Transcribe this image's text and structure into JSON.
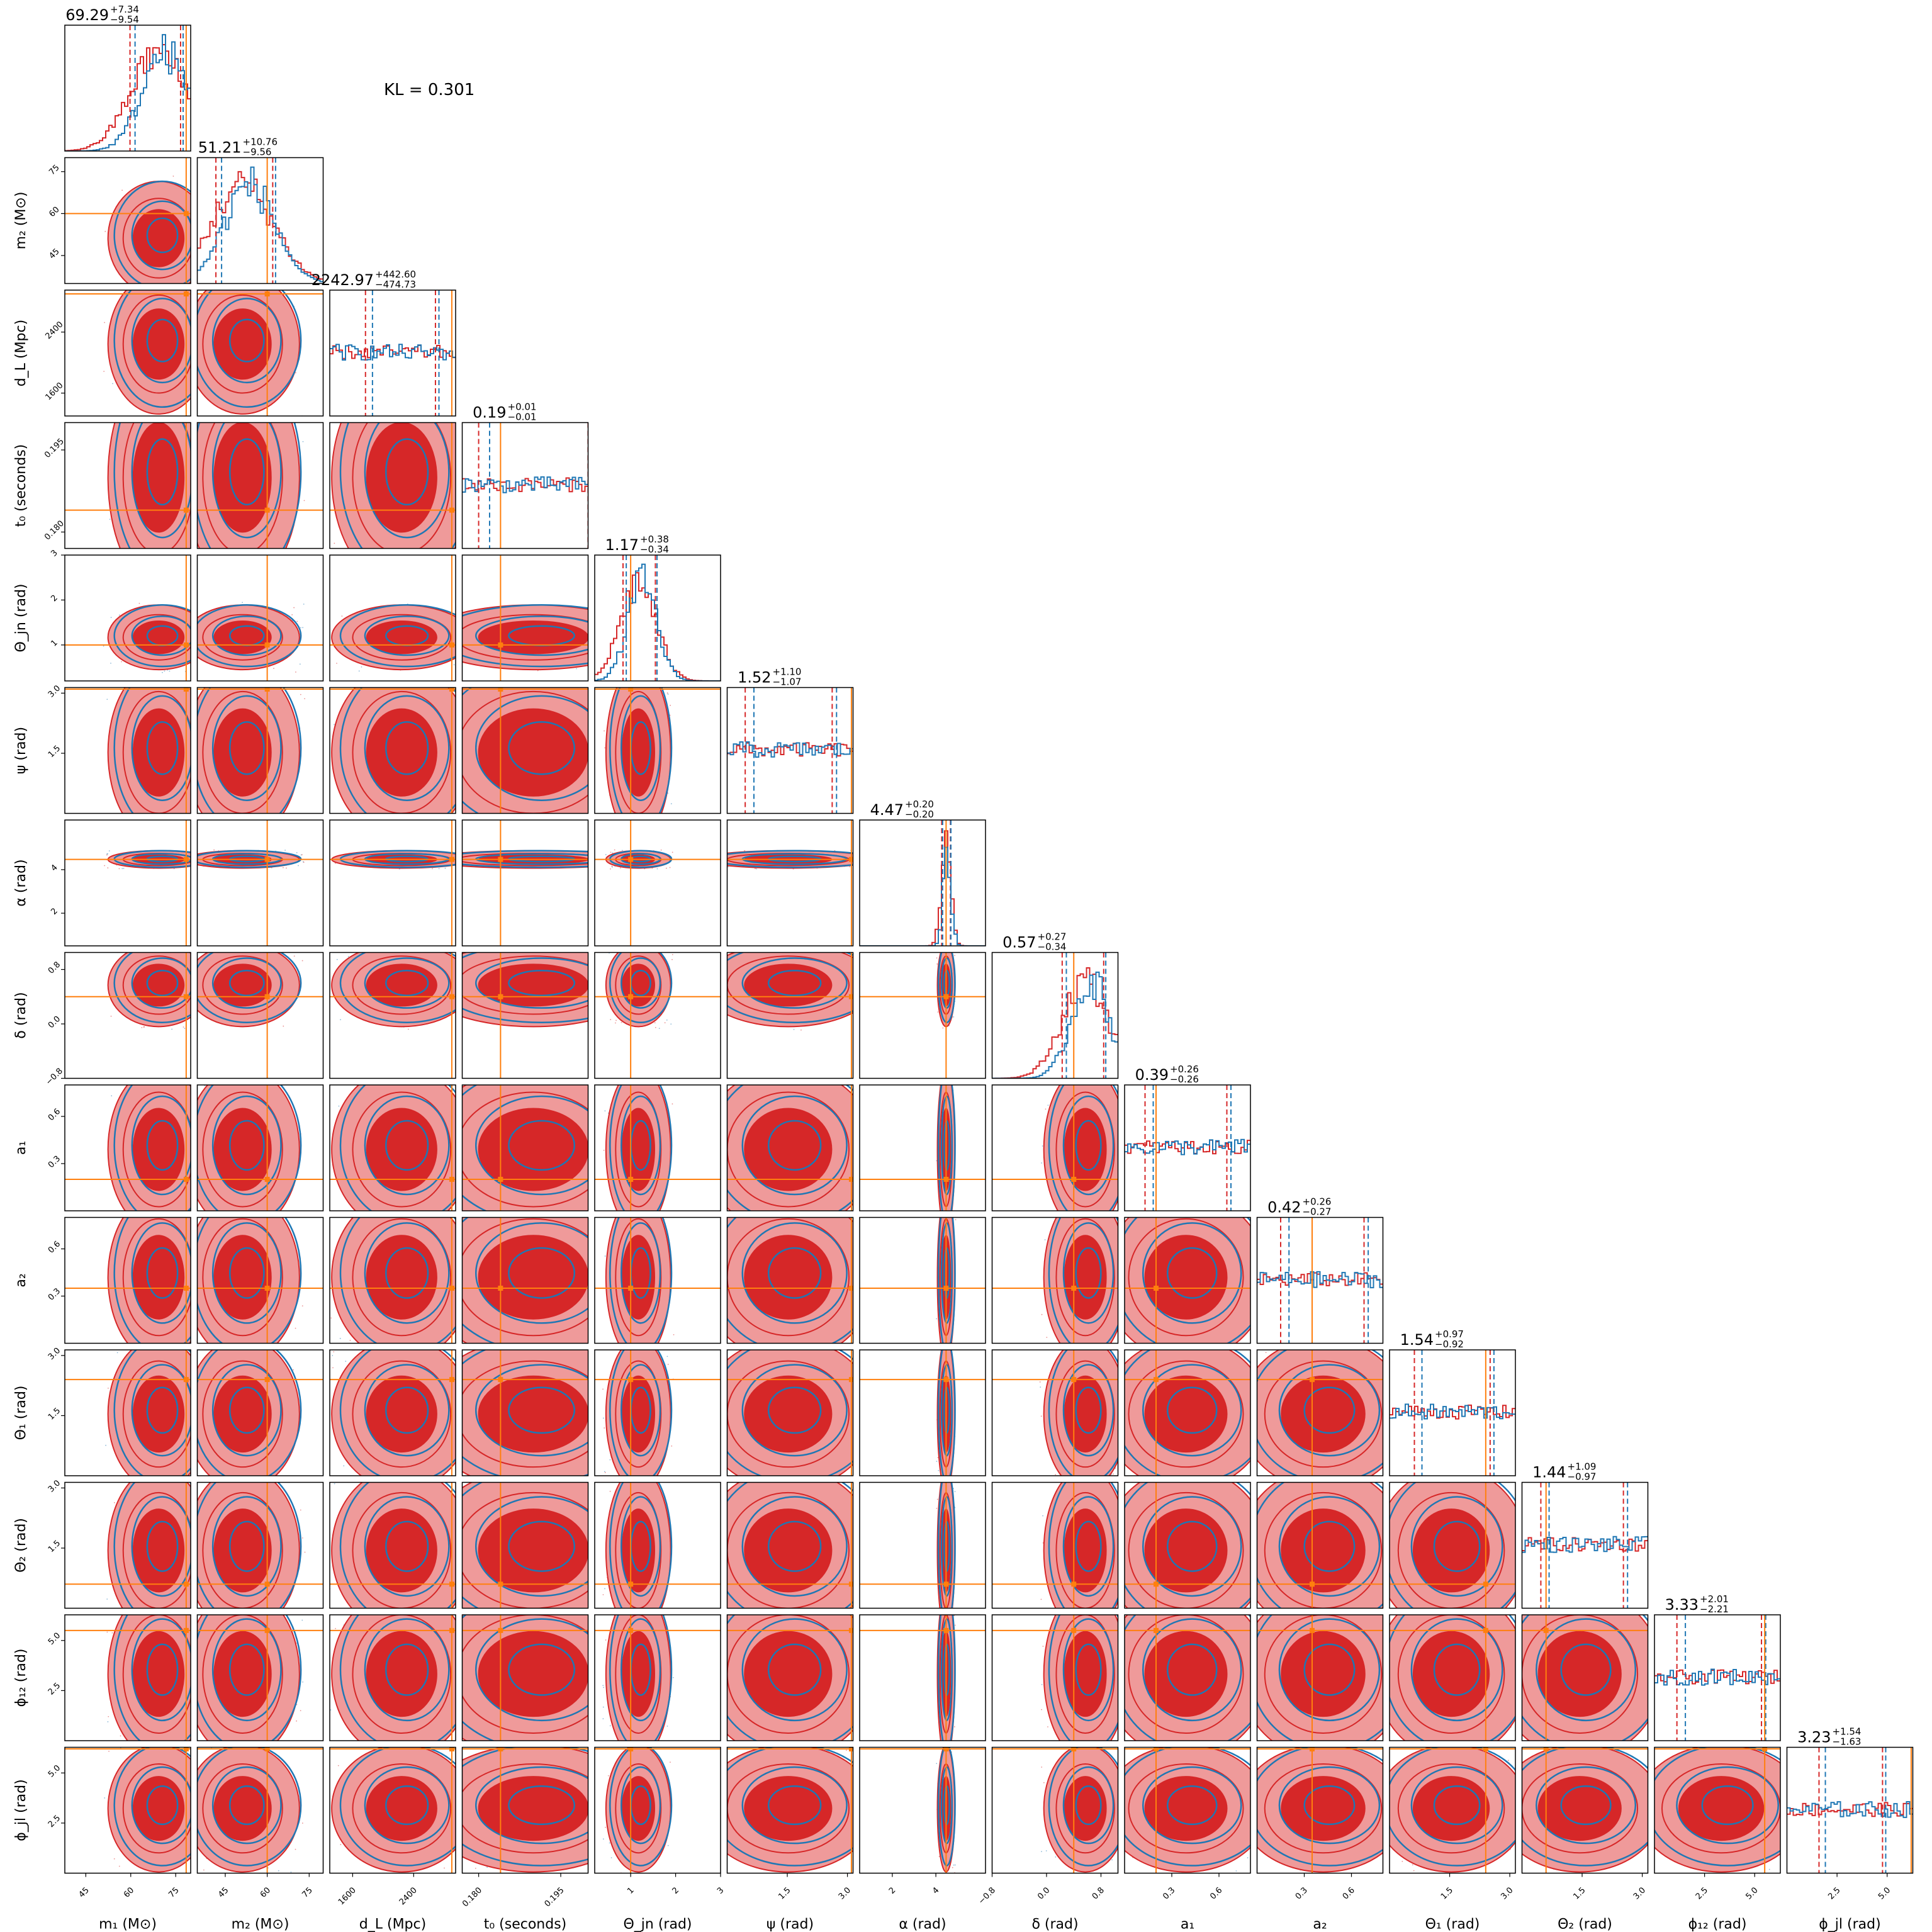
{
  "chart_data": {
    "type": "corner",
    "annotation": "KL = 0.301",
    "colors": {
      "red": "#d62728",
      "blue": "#1f77b4",
      "orange": "#ff7f0e",
      "red_light": "#ef9a9a"
    },
    "parameters": [
      {
        "label": "m₁ (M⊙)",
        "title": "69.29",
        "plus": "+7.34",
        "minus": "−9.54",
        "range": [
          38,
          80
        ],
        "ticks": [
          "45",
          "60",
          "75"
        ],
        "truth": 78.5
      },
      {
        "label": "m₂ (M⊙)",
        "title": "51.21",
        "plus": "+10.76",
        "minus": "−9.56",
        "range": [
          35,
          80
        ],
        "ticks": [
          "45",
          "60",
          "75"
        ],
        "truth": 60
      },
      {
        "label": "d_L (Mpc)",
        "title": "2242.97",
        "plus": "+442.60",
        "minus": "−474.73",
        "range": [
          1300,
          2950
        ],
        "ticks": [
          "1600",
          "2400"
        ],
        "truth": 2900
      },
      {
        "label": "t₀ (seconds)",
        "title": "0.19",
        "plus": "+0.01",
        "minus": "−0.01",
        "range": [
          0.177,
          0.2
        ],
        "ticks": [
          "0.180",
          "0.195"
        ],
        "truth": 0.184
      },
      {
        "label": "Θ_jn (rad)",
        "title": "1.17",
        "plus": "+0.38",
        "minus": "−0.34",
        "range": [
          0.2,
          3.0
        ],
        "ticks": [
          "1",
          "2",
          "3"
        ],
        "truth": 1.0
      },
      {
        "label": "ψ (rad)",
        "title": "1.52",
        "plus": "+1.10",
        "minus": "−1.07",
        "range": [
          0,
          3.14
        ],
        "ticks": [
          "1.5",
          "3.0"
        ],
        "truth": 3.1
      },
      {
        "label": "α (rad)",
        "title": "4.47",
        "plus": "+0.20",
        "minus": "−0.20",
        "range": [
          0.5,
          6.28
        ],
        "ticks": [
          "2",
          "4"
        ],
        "truth": 4.47
      },
      {
        "label": "δ (rad)",
        "title": "0.57",
        "plus": "+0.27",
        "minus": "−0.34",
        "range": [
          -0.8,
          1.05
        ],
        "ticks": [
          "−0.8",
          "0.0",
          "0.8"
        ],
        "truth": 0.4
      },
      {
        "label": "a₁",
        "title": "0.39",
        "plus": "+0.26",
        "minus": "−0.26",
        "range": [
          0,
          0.8
        ],
        "ticks": [
          "0.3",
          "0.6"
        ],
        "truth": 0.2
      },
      {
        "label": "a₂",
        "title": "0.42",
        "plus": "+0.26",
        "minus": "−0.27",
        "range": [
          0,
          0.8
        ],
        "ticks": [
          "0.3",
          "0.6"
        ],
        "truth": 0.35
      },
      {
        "label": "Θ₁ (rad)",
        "title": "1.54",
        "plus": "+0.97",
        "minus": "−0.92",
        "range": [
          0,
          3.14
        ],
        "ticks": [
          "1.5",
          "3.0"
        ],
        "truth": 2.4
      },
      {
        "label": "Θ₂ (rad)",
        "title": "1.44",
        "plus": "+1.09",
        "minus": "−0.97",
        "range": [
          0,
          3.14
        ],
        "ticks": [
          "1.5",
          "3.0"
        ],
        "truth": 0.6
      },
      {
        "label": "ϕ₁₂ (rad)",
        "title": "3.33",
        "plus": "+2.01",
        "minus": "−2.21",
        "range": [
          0,
          6.28
        ],
        "ticks": [
          "2.5",
          "5.0"
        ],
        "truth": 5.5
      },
      {
        "label": "ϕ_jl (rad)",
        "title": "3.23",
        "plus": "+1.54",
        "minus": "−1.63",
        "range": [
          0,
          6.28
        ],
        "ticks": [
          "2.5",
          "5.0"
        ],
        "truth": 6.2
      }
    ]
  }
}
